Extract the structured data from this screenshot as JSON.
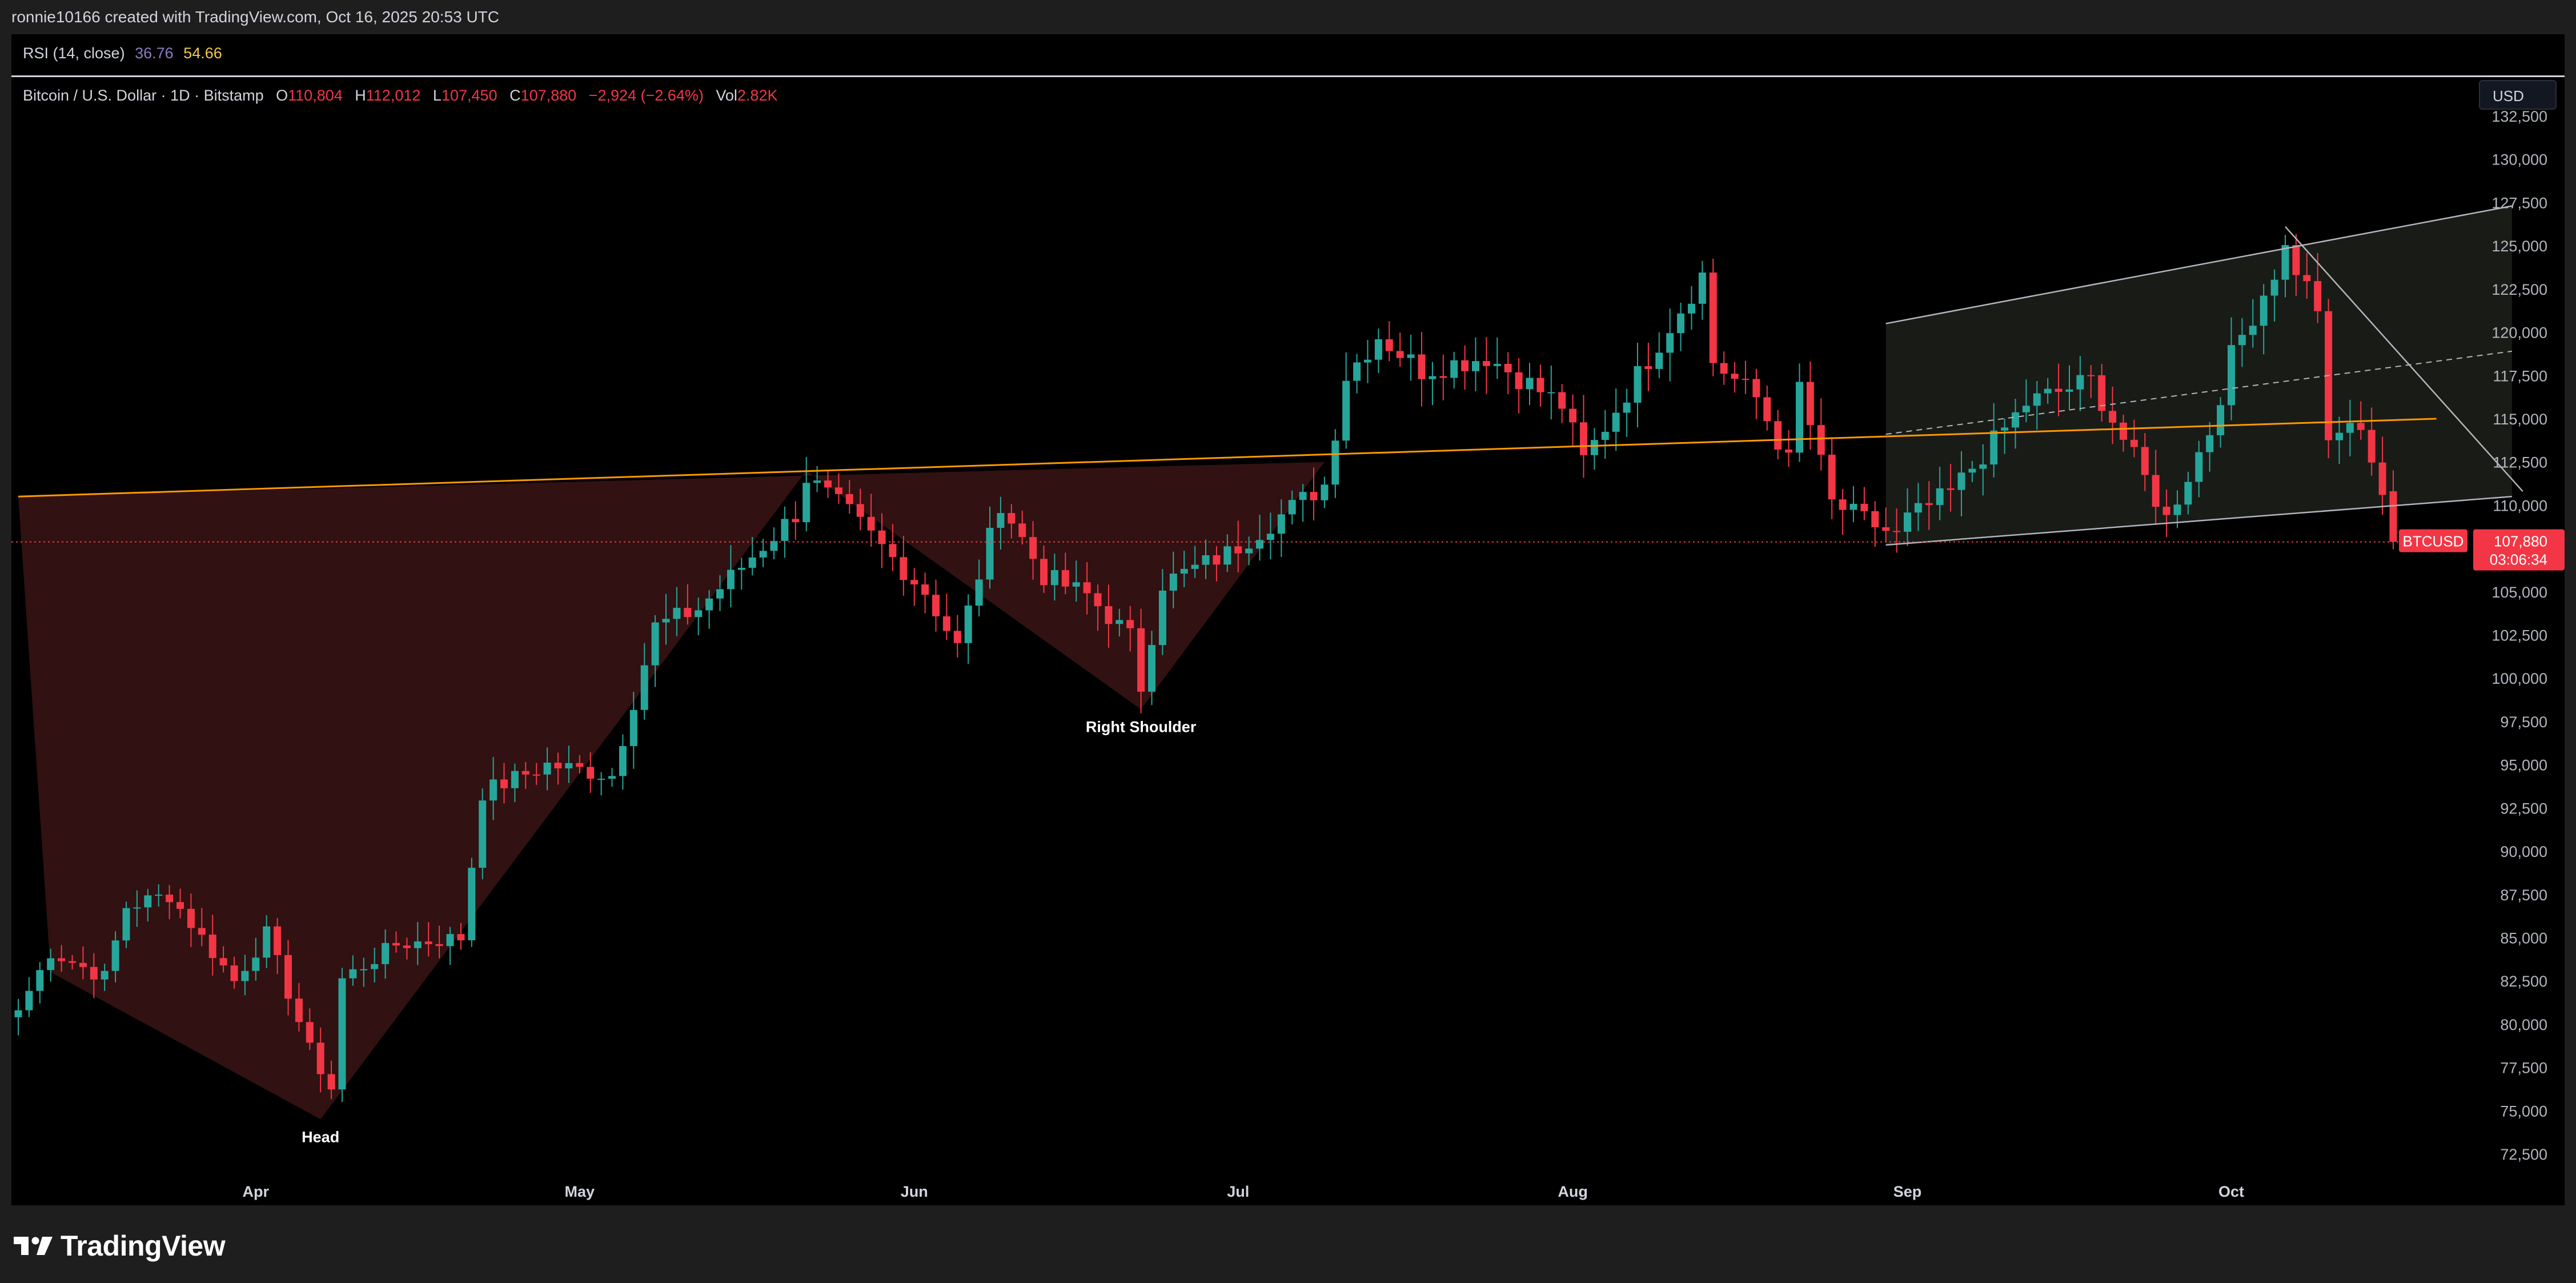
{
  "header": {
    "credit": "ronnie10166 created with TradingView.com, Oct 16, 2025 20:53 UTC"
  },
  "rsi": {
    "label": "RSI (14, close)",
    "value1": "36.76",
    "value2": "54.66",
    "color1": "#8e7cc3",
    "color2": "#f2c94c"
  },
  "legend": {
    "symbol": "Bitcoin / U.S. Dollar · 1D · Bitstamp",
    "open_label": "O",
    "open": "110,804",
    "high_label": "H",
    "high": "112,012",
    "low_label": "L",
    "low": "107,450",
    "close_label": "C",
    "close": "107,880",
    "change": "−2,924 (−2.64%)",
    "vol_label": "Vol",
    "vol": "2.82K"
  },
  "currency": "USD",
  "price_tag": {
    "symbol": "BTCUSD",
    "price": "107,880",
    "countdown": "03:06:34",
    "color": "#f23645"
  },
  "annotations": {
    "head": "Head",
    "right_shoulder": "Right Shoulder"
  },
  "footer": {
    "logo": "TradingView"
  },
  "colors": {
    "up": "#26a69a",
    "down": "#f23645",
    "neckline": "#ff9800",
    "pattern_fill": "#3a1414",
    "channel": "#b2b5be",
    "background": "#000000"
  },
  "chart_data": {
    "type": "candlestick",
    "title": "Bitcoin / U.S. Dollar · 1D · Bitstamp",
    "x_axis": {
      "type": "date",
      "start": "2025-03-10",
      "end": "2025-10-16",
      "ticks": [
        {
          "label": "Apr",
          "date": "2025-04-01"
        },
        {
          "label": "May",
          "date": "2025-05-01"
        },
        {
          "label": "Jun",
          "date": "2025-06-01"
        },
        {
          "label": "Jul",
          "date": "2025-07-01"
        },
        {
          "label": "Aug",
          "date": "2025-08-01"
        },
        {
          "label": "Sep",
          "date": "2025-09-01"
        },
        {
          "label": "Oct",
          "date": "2025-10-01"
        }
      ]
    },
    "y_axis": {
      "label": "USD",
      "ylim": [
        71500,
        133500
      ],
      "ticks": [
        72500,
        75000,
        77500,
        80000,
        82500,
        85000,
        87500,
        90000,
        92500,
        95000,
        97500,
        100000,
        102500,
        105000,
        107500,
        110000,
        112500,
        115000,
        117500,
        120000,
        122500,
        125000,
        127500,
        130000,
        132500
      ],
      "tick_labels": [
        "72,500",
        "75,000",
        "77,500",
        "80,000",
        "82,500",
        "85,000",
        "87,500",
        "90,000",
        "92,500",
        "95,000",
        "97,500",
        "100,000",
        "102,500",
        "105,000",
        "107,500",
        "110,000",
        "112,500",
        "115,000",
        "117,500",
        "120,000",
        "122,500",
        "125,000",
        "127,500",
        "130,000",
        "132,500"
      ]
    },
    "close_anchors": [
      {
        "date": "2025-03-10",
        "close": 80800
      },
      {
        "date": "2025-03-13",
        "close": 84200
      },
      {
        "date": "2025-03-18",
        "close": 82700
      },
      {
        "date": "2025-03-20",
        "close": 86800
      },
      {
        "date": "2025-03-24",
        "close": 87500
      },
      {
        "date": "2025-03-30",
        "close": 82500
      },
      {
        "date": "2025-04-02",
        "close": 85200
      },
      {
        "date": "2025-04-06",
        "close": 78500
      },
      {
        "date": "2025-04-08",
        "close": 76300
      },
      {
        "date": "2025-04-09",
        "close": 82600
      },
      {
        "date": "2025-04-14",
        "close": 84600
      },
      {
        "date": "2025-04-20",
        "close": 85000
      },
      {
        "date": "2025-04-22",
        "close": 93400
      },
      {
        "date": "2025-04-28",
        "close": 95000
      },
      {
        "date": "2025-05-04",
        "close": 94400
      },
      {
        "date": "2025-05-08",
        "close": 103000
      },
      {
        "date": "2025-05-12",
        "close": 104000
      },
      {
        "date": "2025-05-21",
        "close": 109500
      },
      {
        "date": "2025-05-22",
        "close": 111600
      },
      {
        "date": "2025-05-26",
        "close": 109500
      },
      {
        "date": "2025-06-02",
        "close": 105000
      },
      {
        "date": "2025-06-05",
        "close": 101800
      },
      {
        "date": "2025-06-09",
        "close": 110200
      },
      {
        "date": "2025-06-13",
        "close": 105900
      },
      {
        "date": "2025-06-17",
        "close": 104800
      },
      {
        "date": "2025-06-21",
        "close": 102400
      },
      {
        "date": "2025-06-22",
        "close": 99500
      },
      {
        "date": "2025-06-24",
        "close": 105500
      },
      {
        "date": "2025-06-30",
        "close": 107200
      },
      {
        "date": "2025-07-09",
        "close": 111200
      },
      {
        "date": "2025-07-11",
        "close": 117500
      },
      {
        "date": "2025-07-14",
        "close": 119800
      },
      {
        "date": "2025-07-18",
        "close": 117800
      },
      {
        "date": "2025-07-24",
        "close": 118600
      },
      {
        "date": "2025-07-31",
        "close": 115800
      },
      {
        "date": "2025-08-02",
        "close": 112600
      },
      {
        "date": "2025-08-07",
        "close": 117500
      },
      {
        "date": "2025-08-13",
        "close": 123300
      },
      {
        "date": "2025-08-14",
        "close": 118300
      },
      {
        "date": "2025-08-18",
        "close": 116200
      },
      {
        "date": "2025-08-21",
        "close": 112500
      },
      {
        "date": "2025-08-22",
        "close": 116900
      },
      {
        "date": "2025-08-25",
        "close": 110100
      },
      {
        "date": "2025-08-31",
        "close": 108200
      },
      {
        "date": "2025-09-01",
        "close": 109200
      },
      {
        "date": "2025-09-05",
        "close": 110700
      },
      {
        "date": "2025-09-12",
        "close": 115900
      },
      {
        "date": "2025-09-18",
        "close": 117200
      },
      {
        "date": "2025-09-22",
        "close": 112700
      },
      {
        "date": "2025-09-25",
        "close": 109200
      },
      {
        "date": "2025-09-29",
        "close": 114300
      },
      {
        "date": "2025-10-01",
        "close": 118600
      },
      {
        "date": "2025-10-05",
        "close": 123500
      },
      {
        "date": "2025-10-06",
        "close": 124800
      },
      {
        "date": "2025-10-09",
        "close": 121500
      },
      {
        "date": "2025-10-10",
        "close": 113200
      },
      {
        "date": "2025-10-12",
        "close": 114900
      },
      {
        "date": "2025-10-14",
        "close": 112900
      },
      {
        "date": "2025-10-15",
        "close": 110800
      },
      {
        "date": "2025-10-16",
        "close": 107880
      }
    ],
    "last_bar": {
      "date": "2025-10-16",
      "open": 110804,
      "high": 112012,
      "low": 107450,
      "close": 107880
    },
    "neckline": [
      {
        "date": "2025-03-10",
        "price": 110500
      },
      {
        "date": "2025-10-20",
        "price": 115000
      }
    ],
    "pattern_fill": {
      "vertices": [
        {
          "date": "2025-03-10",
          "price": 110500
        },
        {
          "date": "2025-03-13",
          "price": 83000
        },
        {
          "date": "2025-04-07",
          "price": 74500
        },
        {
          "date": "2025-05-22",
          "price": 112000
        },
        {
          "date": "2025-06-22",
          "price": 98200
        },
        {
          "date": "2025-07-09",
          "price": 112500
        }
      ]
    },
    "channel": {
      "upper": [
        {
          "date": "2025-08-30",
          "price": 120500
        },
        {
          "date": "2025-10-27",
          "price": 127300
        }
      ],
      "lower": [
        {
          "date": "2025-08-30",
          "price": 107700
        },
        {
          "date": "2025-10-27",
          "price": 110500
        }
      ],
      "mid": [
        {
          "date": "2025-08-30",
          "price": 114100
        },
        {
          "date": "2025-10-27",
          "price": 118900
        }
      ]
    },
    "trendline": [
      {
        "date": "2025-10-06",
        "price": 126100
      },
      {
        "date": "2025-10-28",
        "price": 110800
      }
    ],
    "current_price_line": 107880,
    "labels": [
      {
        "text": "Head",
        "date": "2025-04-07",
        "price": 74500
      },
      {
        "text": "Right Shoulder",
        "date": "2025-06-22",
        "price": 98200
      }
    ]
  }
}
